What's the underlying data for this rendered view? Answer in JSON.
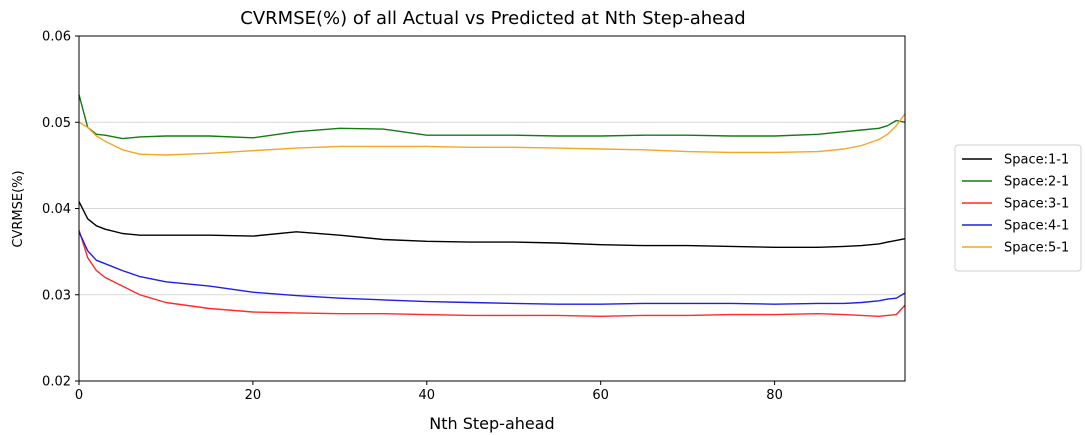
{
  "chart_data": {
    "type": "line",
    "title": "CVRMSE(%) of all Actual vs Predicted at Nth Step-ahead",
    "xlabel": "Nth Step-ahead",
    "ylabel": "CVRMSE(%)",
    "xlim": [
      0,
      95
    ],
    "ylim": [
      0.02,
      0.06
    ],
    "xticks": [
      "0",
      "20",
      "40",
      "60",
      "80"
    ],
    "xtick_values": [
      0,
      20,
      40,
      60,
      80
    ],
    "yticks": [
      "0.02",
      "0.03",
      "0.04",
      "0.05",
      "0.06"
    ],
    "ytick_values": [
      0.02,
      0.03,
      0.04,
      0.05,
      0.06
    ],
    "grid": "horizontal",
    "legend_position": "outside-right",
    "x": [
      0,
      1,
      2,
      3,
      5,
      7,
      10,
      15,
      20,
      25,
      30,
      35,
      40,
      45,
      50,
      55,
      60,
      65,
      70,
      75,
      80,
      85,
      88,
      90,
      92,
      93,
      94,
      95
    ],
    "series": [
      {
        "name": "Space:1-1",
        "color": "#000000",
        "values": [
          0.0408,
          0.0388,
          0.038,
          0.0376,
          0.0371,
          0.0369,
          0.0369,
          0.0369,
          0.0368,
          0.0373,
          0.0369,
          0.0364,
          0.0362,
          0.0361,
          0.0361,
          0.036,
          0.0358,
          0.0357,
          0.0357,
          0.0356,
          0.0355,
          0.0355,
          0.0356,
          0.0357,
          0.0359,
          0.0361,
          0.0363,
          0.0365
        ]
      },
      {
        "name": "Space:2-1",
        "color": "#137b13",
        "values": [
          0.0532,
          0.0494,
          0.0486,
          0.0485,
          0.0481,
          0.0483,
          0.0484,
          0.0484,
          0.0482,
          0.0489,
          0.0493,
          0.0492,
          0.0485,
          0.0485,
          0.0485,
          0.0484,
          0.0484,
          0.0485,
          0.0485,
          0.0484,
          0.0484,
          0.0486,
          0.0489,
          0.0491,
          0.0493,
          0.0496,
          0.0502,
          0.05
        ]
      },
      {
        "name": "Space:3-1",
        "color": "#ff2a2a",
        "values": [
          0.0375,
          0.0343,
          0.0328,
          0.032,
          0.031,
          0.03,
          0.0291,
          0.0284,
          0.028,
          0.0279,
          0.0278,
          0.0278,
          0.0277,
          0.0276,
          0.0276,
          0.0276,
          0.0275,
          0.0276,
          0.0276,
          0.0277,
          0.0277,
          0.0278,
          0.0277,
          0.0276,
          0.0275,
          0.0276,
          0.0277,
          0.0288
        ]
      },
      {
        "name": "Space:4-1",
        "color": "#1f1fe6",
        "values": [
          0.0373,
          0.0351,
          0.034,
          0.0336,
          0.0328,
          0.0321,
          0.0315,
          0.031,
          0.0303,
          0.0299,
          0.0296,
          0.0294,
          0.0292,
          0.0291,
          0.029,
          0.0289,
          0.0289,
          0.029,
          0.029,
          0.029,
          0.0289,
          0.029,
          0.029,
          0.0291,
          0.0293,
          0.0295,
          0.0296,
          0.0302
        ]
      },
      {
        "name": "Space:5-1",
        "color": "#f5a623",
        "values": [
          0.05,
          0.0494,
          0.0484,
          0.0478,
          0.0468,
          0.0463,
          0.0462,
          0.0464,
          0.0467,
          0.047,
          0.0472,
          0.0472,
          0.0472,
          0.0471,
          0.0471,
          0.047,
          0.0469,
          0.0468,
          0.0466,
          0.0465,
          0.0465,
          0.0466,
          0.0469,
          0.0473,
          0.048,
          0.0486,
          0.0496,
          0.051
        ]
      }
    ]
  }
}
